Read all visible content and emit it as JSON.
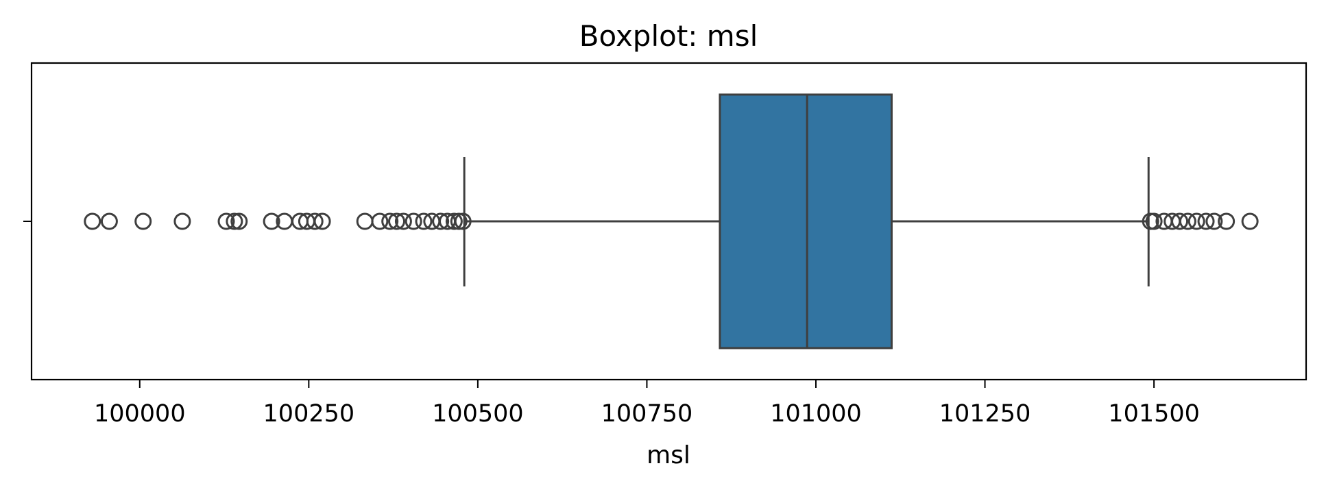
{
  "chart_data": {
    "type": "box",
    "title": "Boxplot: msl",
    "xlabel": "msl",
    "ylabel": "",
    "xlim": [
      99840,
      101725
    ],
    "xticks": [
      100000,
      100250,
      100500,
      100750,
      101000,
      101250,
      101500
    ],
    "xtick_labels": [
      "100000",
      "100250",
      "100500",
      "100750",
      "101000",
      "101250",
      "101500"
    ],
    "grid": false,
    "box": {
      "q1": 100858,
      "median": 100987,
      "q3": 101112,
      "whisker_low": 100480,
      "whisker_high": 101492
    },
    "outliers": [
      99930,
      99955,
      100005,
      100063,
      100128,
      100140,
      100147,
      100195,
      100214,
      100237,
      100247,
      100259,
      100270,
      100333,
      100355,
      100370,
      100380,
      100390,
      100405,
      100420,
      100432,
      100445,
      100455,
      100465,
      100472,
      100478,
      101495,
      101500,
      101515,
      101527,
      101538,
      101550,
      101563,
      101577,
      101589,
      101607,
      101642
    ],
    "colors": {
      "box_fill": "#3274a1",
      "line": "#3f3f3f",
      "axes": "#000000"
    }
  }
}
